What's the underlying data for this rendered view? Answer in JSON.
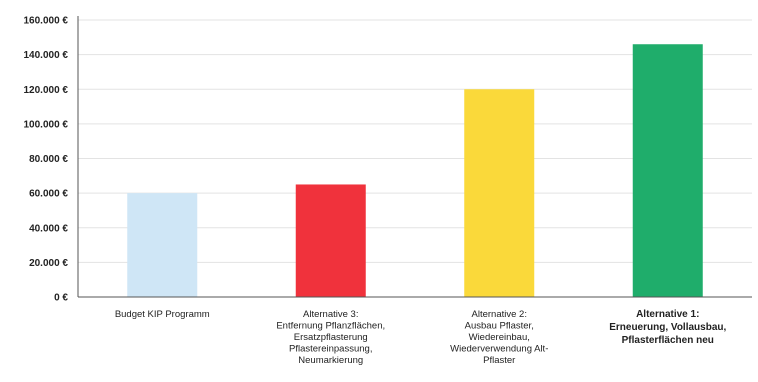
{
  "chart_data": {
    "type": "bar",
    "title": "",
    "xlabel": "",
    "ylabel": "",
    "ylim": [
      0,
      160000
    ],
    "yticks": [
      0,
      20000,
      40000,
      60000,
      80000,
      100000,
      120000,
      140000,
      160000
    ],
    "ytick_labels": [
      "0 €",
      "20.000 €",
      "40.000 €",
      "60.000 €",
      "80.000 €",
      "100.000 €",
      "120.000 €",
      "140.000 €",
      "160.000 €"
    ],
    "grid": true,
    "legend": "none",
    "categories": [
      [
        "Budget KIP Programm"
      ],
      [
        "Alternative 3:",
        "Entfernung Pflanzflächen,",
        "Ersatzpflasterung",
        "Pflastereinpassung,",
        "Neumarkierung"
      ],
      [
        "Alternative 2:",
        "Ausbau Pflaster,",
        "Wiedereinbau,",
        "Wiederverwendung Alt-",
        "Pflaster"
      ],
      [
        "Alternative 1:",
        "Erneuerung, Vollausbau,",
        "Pflasterflächen neu"
      ]
    ],
    "values": [
      60000,
      65000,
      120000,
      146000
    ],
    "colors": [
      "#cfe6f6",
      "#f0323c",
      "#fad93a",
      "#1fad6b"
    ],
    "emphasized_category": 3
  }
}
